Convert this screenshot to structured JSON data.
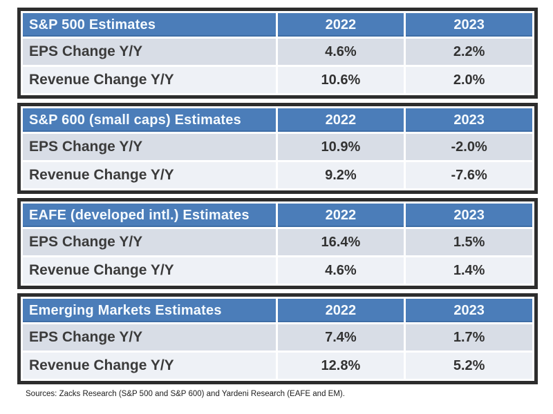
{
  "chart_data": [
    {
      "type": "table",
      "title": "S&P 500 Estimates",
      "columns": [
        "2022",
        "2023"
      ],
      "units": "percent_change_yoy",
      "rows": [
        {
          "label": "EPS Change Y/Y",
          "values": [
            "4.6%",
            "2.2%"
          ],
          "numeric": [
            4.6,
            2.2
          ]
        },
        {
          "label": "Revenue Change Y/Y",
          "values": [
            "10.6%",
            "2.0%"
          ],
          "numeric": [
            10.6,
            2.0
          ]
        }
      ]
    },
    {
      "type": "table",
      "title": "S&P 600 (small caps) Estimates",
      "columns": [
        "2022",
        "2023"
      ],
      "units": "percent_change_yoy",
      "rows": [
        {
          "label": "EPS Change Y/Y",
          "values": [
            "10.9%",
            "-2.0%"
          ],
          "numeric": [
            10.9,
            -2.0
          ]
        },
        {
          "label": "Revenue Change Y/Y",
          "values": [
            "9.2%",
            "-7.6%"
          ],
          "numeric": [
            9.2,
            -7.6
          ]
        }
      ]
    },
    {
      "type": "table",
      "title": "EAFE (developed intl.) Estimates",
      "columns": [
        "2022",
        "2023"
      ],
      "units": "percent_change_yoy",
      "rows": [
        {
          "label": "EPS Change Y/Y",
          "values": [
            "16.4%",
            "1.5%"
          ],
          "numeric": [
            16.4,
            1.5
          ]
        },
        {
          "label": "Revenue Change Y/Y",
          "values": [
            "4.6%",
            "1.4%"
          ],
          "numeric": [
            4.6,
            1.4
          ]
        }
      ]
    },
    {
      "type": "table",
      "title": "Emerging Markets Estimates",
      "columns": [
        "2022",
        "2023"
      ],
      "units": "percent_change_yoy",
      "rows": [
        {
          "label": "EPS Change Y/Y",
          "values": [
            "7.4%",
            "1.7%"
          ],
          "numeric": [
            7.4,
            1.7
          ]
        },
        {
          "label": "Revenue Change Y/Y",
          "values": [
            "12.8%",
            "5.2%"
          ],
          "numeric": [
            12.8,
            5.2
          ]
        }
      ]
    }
  ],
  "footer": {
    "sources_text": "Sources: Zacks Research (S&P 500 and S&P 600) and Yardeni Research (EAFE and EM)."
  },
  "colors": {
    "header_bg": "#4b7db9",
    "header_text": "#f6fbff",
    "row_odd_bg": "#d8dde6",
    "row_even_bg": "#eef1f6",
    "table_border": "#2d2d2d",
    "body_text": "#3b3b3b"
  }
}
